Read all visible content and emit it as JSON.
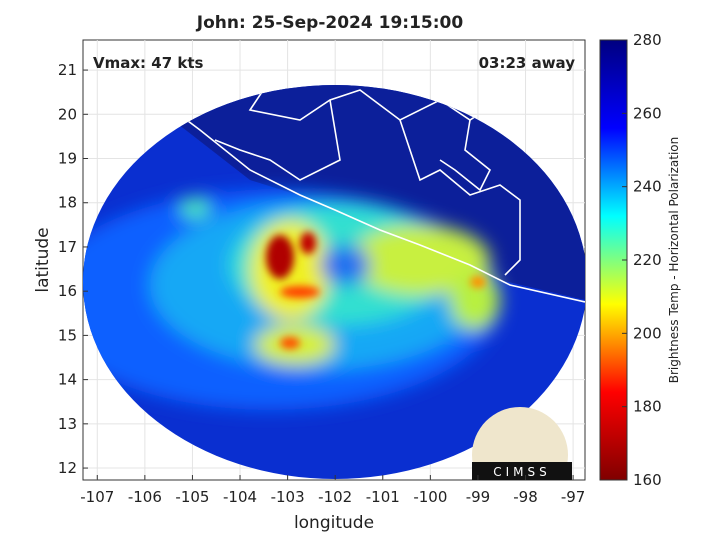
{
  "chart_data": {
    "type": "map",
    "title": "John: 25-Sep-2024 19:15:00",
    "annotations": [
      "Vmax: 47 kts",
      "03:23 away"
    ],
    "xlabel": "longitude",
    "ylabel": "latitude",
    "xlim": [
      -107.3,
      -96.75
    ],
    "ylim": [
      11.73,
      21.68
    ],
    "xticks": [
      -107,
      -106,
      -105,
      -104,
      -103,
      -102,
      -101,
      -100,
      -99,
      -98,
      -97
    ],
    "yticks": [
      12,
      13,
      14,
      15,
      16,
      17,
      18,
      19,
      20,
      21
    ],
    "grid": true,
    "colorbar": {
      "label": "Brightness Temp - Horizontal Polarization",
      "lim": [
        160,
        280
      ],
      "ticks": [
        160,
        180,
        200,
        220,
        240,
        260,
        280
      ],
      "colormap": [
        "#800000",
        "#ff0000",
        "#ffff00",
        "#00ffff",
        "#0000ff",
        "#000080"
      ]
    },
    "logo": "CIMSS"
  }
}
